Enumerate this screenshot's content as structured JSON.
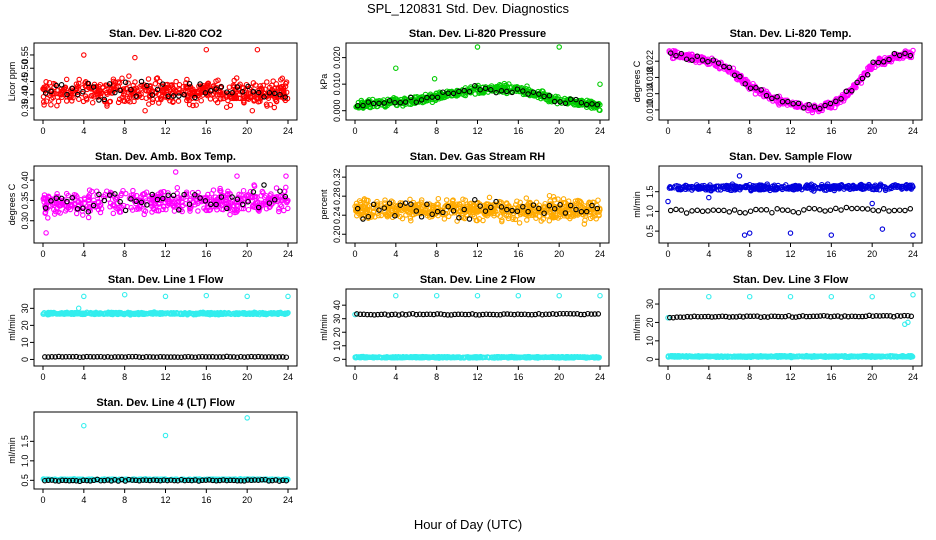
{
  "figure": {
    "title": "SPL_120831  Std. Dev. Diagnostics",
    "xlabel": "Hour of Day (UTC)"
  },
  "chart_data": [
    {
      "type": "scatter",
      "title": "Stan. Dev. Li-820 CO2",
      "ylabel": "Licor ppm",
      "xlim": [
        0,
        24
      ],
      "xticks": [
        0,
        4,
        8,
        12,
        16,
        20,
        24
      ],
      "ylim": [
        0.32,
        0.58
      ],
      "yticks": [
        0.35,
        0.4,
        0.45,
        0.5,
        0.55
      ],
      "yticklabels": [
        "0.35",
        "0.40",
        "0.45",
        "0.50",
        "0.55"
      ],
      "series": [
        {
          "color": "#ff0000",
          "kind": "dense",
          "n": 500,
          "base": [
            [
              0,
              0.41
            ],
            [
              24,
              0.41
            ]
          ],
          "noise": 0.045,
          "outliers": [
            [
              4,
              0.55
            ],
            [
              9,
              0.54
            ],
            [
              16,
              0.57
            ],
            [
              21,
              0.57
            ],
            [
              20.5,
              0.34
            ],
            [
              10,
              0.34
            ]
          ]
        },
        {
          "color": "#000000",
          "kind": "sparse",
          "n": 46,
          "base": [
            [
              0,
              0.41
            ],
            [
              24,
              0.41
            ]
          ],
          "noise": 0.04,
          "outliers": []
        }
      ]
    },
    {
      "type": "scatter",
      "title": "Stan. Dev. Li-820 Pressure",
      "ylabel": "kPa",
      "xlim": [
        0,
        24
      ],
      "xticks": [
        0,
        4,
        8,
        12,
        16,
        20,
        24
      ],
      "ylim": [
        -0.002,
        0.024
      ],
      "yticks": [
        0.0,
        0.01,
        0.02
      ],
      "yticklabels": [
        "0.000",
        "0.010",
        "0.020"
      ],
      "series": [
        {
          "color": "#00cc00",
          "kind": "dense",
          "n": 500,
          "base": [
            [
              0,
              0.002
            ],
            [
              6,
              0.004
            ],
            [
              12,
              0.008
            ],
            [
              16,
              0.008
            ],
            [
              20,
              0.004
            ],
            [
              24,
              0.002
            ]
          ],
          "noise": 0.0015,
          "outliers": [
            [
              4,
              0.016
            ],
            [
              7.8,
              0.012
            ],
            [
              12,
              0.024
            ],
            [
              20,
              0.024
            ],
            [
              24,
              0.01
            ]
          ]
        },
        {
          "color": "#000000",
          "kind": "sparse",
          "n": 46,
          "base": [
            [
              0,
              0.002
            ],
            [
              6,
              0.004
            ],
            [
              12,
              0.008
            ],
            [
              16,
              0.008
            ],
            [
              20,
              0.004
            ],
            [
              24,
              0.002
            ]
          ],
          "noise": 0.0012,
          "outliers": []
        }
      ]
    },
    {
      "type": "scatter",
      "title": "Stan. Dev. Li-820 Temp.",
      "ylabel": "degrees C",
      "xlim": [
        0,
        24
      ],
      "xticks": [
        0,
        4,
        8,
        12,
        16,
        20,
        24
      ],
      "ylim": [
        0.0085,
        0.0255
      ],
      "yticks": [
        0.01,
        0.014,
        0.018,
        0.022
      ],
      "yticklabels": [
        "0.010",
        "0.014",
        "0.018",
        "0.022"
      ],
      "series": [
        {
          "color": "#ff00ff",
          "kind": "dense",
          "n": 450,
          "base": [
            [
              0,
              0.024
            ],
            [
              4,
              0.022
            ],
            [
              6,
              0.02
            ],
            [
              8,
              0.016
            ],
            [
              11,
              0.012
            ],
            [
              14,
              0.0105
            ],
            [
              16,
              0.011
            ],
            [
              18,
              0.015
            ],
            [
              20,
              0.021
            ],
            [
              22,
              0.023
            ],
            [
              24,
              0.024
            ]
          ],
          "noise": 0.0009,
          "outliers": []
        },
        {
          "color": "#000000",
          "kind": "sparse",
          "n": 46,
          "base": [
            [
              0,
              0.024
            ],
            [
              4,
              0.022
            ],
            [
              6,
              0.02
            ],
            [
              8,
              0.016
            ],
            [
              11,
              0.012
            ],
            [
              14,
              0.0105
            ],
            [
              16,
              0.011
            ],
            [
              18,
              0.015
            ],
            [
              20,
              0.021
            ],
            [
              22,
              0.023
            ],
            [
              24,
              0.024
            ]
          ],
          "noise": 0.0008,
          "outliers": []
        }
      ]
    },
    {
      "type": "scatter",
      "title": "Stan. Dev. Amb. Box Temp.",
      "ylabel": "degrees C",
      "xlim": [
        0,
        24
      ],
      "xticks": [
        0,
        4,
        8,
        12,
        16,
        20,
        24
      ],
      "ylim": [
        0.255,
        0.425
      ],
      "yticks": [
        0.3,
        0.35,
        0.4
      ],
      "yticklabels": [
        "0.30",
        "0.35",
        "0.40"
      ],
      "series": [
        {
          "color": "#ff00ff",
          "kind": "dense",
          "n": 480,
          "base": [
            [
              0,
              0.345
            ],
            [
              24,
              0.35
            ]
          ],
          "noise": 0.028,
          "outliers": [
            [
              0.3,
              0.27
            ],
            [
              13,
              0.42
            ],
            [
              19,
              0.41
            ],
            [
              23.8,
              0.41
            ]
          ]
        },
        {
          "color": "#000000",
          "kind": "sparse",
          "n": 46,
          "base": [
            [
              0,
              0.345
            ],
            [
              24,
              0.35
            ]
          ],
          "noise": 0.028,
          "outliers": []
        }
      ]
    },
    {
      "type": "scatter",
      "title": "Stan. Dev. Gas Stream RH",
      "ylabel": "percent",
      "xlim": [
        0,
        24
      ],
      "xticks": [
        0,
        4,
        8,
        12,
        16,
        20,
        24
      ],
      "ylim": [
        0.19,
        0.335
      ],
      "yticks": [
        0.2,
        0.24,
        0.28,
        0.32
      ],
      "yticklabels": [
        "0.20",
        "0.24",
        "0.28",
        "0.32"
      ],
      "series": [
        {
          "color": "#ffaa00",
          "kind": "dense",
          "n": 600,
          "base": [
            [
              0,
              0.252
            ],
            [
              24,
              0.252
            ]
          ],
          "noise": 0.02,
          "outliers": []
        },
        {
          "color": "#000000",
          "kind": "sparse",
          "n": 46,
          "base": [
            [
              0,
              0.252
            ],
            [
              24,
              0.252
            ]
          ],
          "noise": 0.018,
          "outliers": []
        }
      ]
    },
    {
      "type": "scatter",
      "title": "Stan. Dev. Sample Flow",
      "ylabel": "ml/min",
      "xlim": [
        0,
        24
      ],
      "xticks": [
        0,
        4,
        8,
        12,
        16,
        20,
        24
      ],
      "ylim": [
        0.3,
        2.05
      ],
      "yticks": [
        0.5,
        1.0,
        1.5
      ],
      "yticklabels": [
        "0.5",
        "1.0",
        "1.5"
      ],
      "series": [
        {
          "color": "#0000dd",
          "kind": "dense",
          "n": 380,
          "base": [
            [
              0,
              1.6
            ],
            [
              24,
              1.62
            ]
          ],
          "noise": 0.07,
          "outliers": [
            [
              0,
              1.25
            ],
            [
              4,
              1.35
            ],
            [
              7.5,
              0.4
            ],
            [
              8,
              0.45
            ],
            [
              12,
              0.45
            ],
            [
              16,
              0.4
            ],
            [
              20,
              1.2
            ],
            [
              24,
              0.4
            ],
            [
              7,
              1.9
            ],
            [
              21,
              0.55
            ]
          ]
        },
        {
          "color": "#000000",
          "kind": "sparse",
          "n": 46,
          "base": [
            [
              0,
              1.0
            ],
            [
              24,
              1.05
            ]
          ],
          "noise": 0.06,
          "outliers": []
        }
      ]
    },
    {
      "type": "scatter",
      "title": "Stan. Dev. Line 1 Flow",
      "ylabel": "ml/min",
      "xlim": [
        0,
        24
      ],
      "xticks": [
        0,
        4,
        8,
        12,
        16,
        20,
        24
      ],
      "ylim": [
        -1.5,
        39
      ],
      "yticks": [
        0,
        10,
        20,
        30
      ],
      "yticklabels": [
        "0",
        "10",
        "20",
        "30"
      ],
      "series": [
        {
          "color": "#33eeee",
          "kind": "dense",
          "n": 500,
          "base": [
            [
              0,
              27
            ],
            [
              24,
              27
            ]
          ],
          "noise": 0.6,
          "outliers": [
            [
              4,
              37
            ],
            [
              8,
              38
            ],
            [
              12,
              37
            ],
            [
              16,
              37.5
            ],
            [
              20,
              37
            ],
            [
              24,
              37
            ],
            [
              3.5,
              30
            ]
          ]
        },
        {
          "color": "#000000",
          "kind": "line",
          "n": 70,
          "base": [
            [
              0,
              1.5
            ],
            [
              24,
              1.5
            ]
          ],
          "noise": 0.2,
          "outliers": []
        }
      ]
    },
    {
      "type": "scatter",
      "title": "Stan. Dev. Line 2 Flow",
      "ylabel": "ml/min",
      "xlim": [
        0,
        24
      ],
      "xticks": [
        0,
        4,
        8,
        12,
        16,
        20,
        24
      ],
      "ylim": [
        -2,
        49
      ],
      "yticks": [
        0,
        10,
        20,
        30,
        40
      ],
      "yticklabels": [
        "0",
        "10",
        "20",
        "30",
        "40"
      ],
      "series": [
        {
          "color": "#33eeee",
          "kind": "dense",
          "n": 500,
          "base": [
            [
              0,
              1.5
            ],
            [
              24,
              1.5
            ]
          ],
          "noise": 0.5,
          "outliers": [
            [
              0,
              33
            ],
            [
              4,
              47
            ],
            [
              8,
              47
            ],
            [
              12,
              47
            ],
            [
              16,
              47
            ],
            [
              20,
              47
            ],
            [
              24,
              47
            ]
          ]
        },
        {
          "color": "#000000",
          "kind": "line",
          "n": 70,
          "base": [
            [
              0,
              33
            ],
            [
              24,
              33.5
            ]
          ],
          "noise": 0.5,
          "outliers": []
        }
      ]
    },
    {
      "type": "scatter",
      "title": "Stan. Dev. Line 3 Flow",
      "ylabel": "ml/min",
      "xlim": [
        0,
        24
      ],
      "xticks": [
        0,
        4,
        8,
        12,
        16,
        20,
        24
      ],
      "ylim": [
        -1.5,
        36
      ],
      "yticks": [
        0,
        10,
        20,
        30
      ],
      "yticklabels": [
        "0",
        "10",
        "20",
        "30"
      ],
      "series": [
        {
          "color": "#33eeee",
          "kind": "dense",
          "n": 500,
          "base": [
            [
              0,
              1.5
            ],
            [
              24,
              1.5
            ]
          ],
          "noise": 0.4,
          "outliers": [
            [
              0,
              22.5
            ],
            [
              4,
              34
            ],
            [
              8,
              34
            ],
            [
              12,
              34
            ],
            [
              16,
              34
            ],
            [
              20,
              34
            ],
            [
              24,
              35
            ],
            [
              23.5,
              20
            ],
            [
              23.2,
              19
            ]
          ]
        },
        {
          "color": "#000000",
          "kind": "line",
          "n": 70,
          "base": [
            [
              0,
              23
            ],
            [
              24,
              23.5
            ]
          ],
          "noise": 0.4,
          "outliers": []
        }
      ]
    },
    {
      "type": "scatter",
      "title": "Stan. Dev. Line 4 (LT) Flow",
      "ylabel": "ml/min",
      "xlim": [
        0,
        24
      ],
      "xticks": [
        0,
        4,
        8,
        12,
        16,
        20,
        24
      ],
      "ylim": [
        0.38,
        2.15
      ],
      "yticks": [
        0.5,
        1.0,
        1.5
      ],
      "yticklabels": [
        "0.5",
        "1.0",
        "1.5"
      ],
      "series": [
        {
          "color": "#33eeee",
          "kind": "dense",
          "n": 420,
          "base": [
            [
              0,
              0.52
            ],
            [
              24,
              0.52
            ]
          ],
          "noise": 0.015,
          "outliers": [
            [
              4,
              1.9
            ],
            [
              12,
              1.65
            ],
            [
              20,
              2.1
            ]
          ]
        },
        {
          "color": "#000000",
          "kind": "line",
          "n": 70,
          "base": [
            [
              0,
              0.5
            ],
            [
              24,
              0.5
            ]
          ],
          "noise": 0.02,
          "outliers": []
        }
      ]
    }
  ]
}
